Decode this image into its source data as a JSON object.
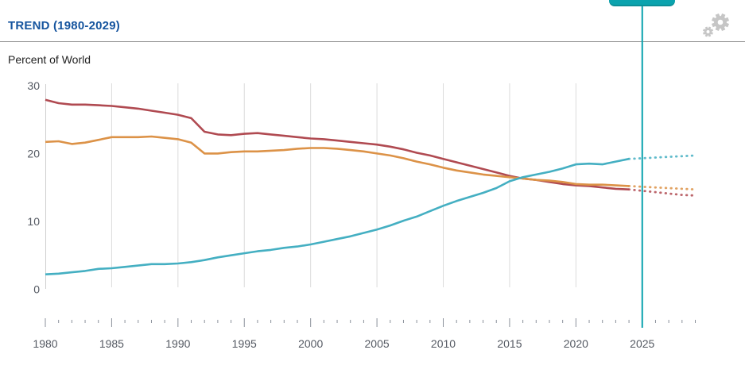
{
  "header": {
    "title": "TREND (1980-2029)",
    "subtitle": "Percent of World"
  },
  "colors": {
    "title_blue": "#15549E",
    "divider": "#909090",
    "subtitle_text": "#222222",
    "gridline": "#DBDBDB",
    "axis_line": "#CFCFCF",
    "tick": "#8B919B",
    "axis_text": "#545962",
    "marker_teal": "#0BA3AE",
    "gear_gray": "#C6C6C6"
  },
  "chart_data": {
    "type": "line",
    "title": "TREND (1980-2029)",
    "ylabel": "Percent of World",
    "xlim": [
      1980,
      2029
    ],
    "ylim": [
      0,
      30
    ],
    "yticks": [
      0,
      10,
      20,
      30
    ],
    "xticks_major": [
      1980,
      1985,
      1990,
      1995,
      2000,
      2005,
      2010,
      2015,
      2020,
      2025
    ],
    "grid_years": [
      1985,
      1990,
      1995,
      2000,
      2005,
      2010,
      2015,
      2020
    ],
    "marker_year": 2025,
    "projection_start": 2024,
    "legend_position": "none",
    "x": [
      1980,
      1981,
      1982,
      1983,
      1984,
      1985,
      1986,
      1987,
      1988,
      1989,
      1990,
      1991,
      1992,
      1993,
      1994,
      1995,
      1996,
      1997,
      1998,
      1999,
      2000,
      2001,
      2002,
      2003,
      2004,
      2005,
      2006,
      2007,
      2008,
      2009,
      2010,
      2011,
      2012,
      2013,
      2014,
      2015,
      2016,
      2017,
      2018,
      2019,
      2020,
      2021,
      2022,
      2023,
      2024,
      2025,
      2026,
      2027,
      2028,
      2029
    ],
    "series": [
      {
        "name": "red",
        "color": "#B04A51",
        "values": [
          27.9,
          27.4,
          27.2,
          27.2,
          27.1,
          27.0,
          26.8,
          26.6,
          26.3,
          26.0,
          25.7,
          25.2,
          23.2,
          22.8,
          22.7,
          22.9,
          23.0,
          22.8,
          22.6,
          22.4,
          22.2,
          22.1,
          21.9,
          21.7,
          21.5,
          21.3,
          21.0,
          20.6,
          20.1,
          19.7,
          19.2,
          18.7,
          18.2,
          17.7,
          17.2,
          16.7,
          16.3,
          16.1,
          15.8,
          15.5,
          15.3,
          15.2,
          15.0,
          14.8,
          14.7,
          14.5,
          14.3,
          14.1,
          13.9,
          13.8
        ]
      },
      {
        "name": "orange",
        "color": "#DC9247",
        "values": [
          21.7,
          21.8,
          21.4,
          21.6,
          22.0,
          22.4,
          22.4,
          22.4,
          22.5,
          22.3,
          22.1,
          21.6,
          20.0,
          20.0,
          20.2,
          20.3,
          20.3,
          20.4,
          20.5,
          20.7,
          20.8,
          20.8,
          20.7,
          20.5,
          20.3,
          20.0,
          19.7,
          19.3,
          18.8,
          18.4,
          17.9,
          17.5,
          17.2,
          16.9,
          16.7,
          16.5,
          16.3,
          16.1,
          16.0,
          15.8,
          15.5,
          15.4,
          15.4,
          15.3,
          15.2,
          15.1,
          15.0,
          14.9,
          14.8,
          14.7
        ]
      },
      {
        "name": "teal",
        "color": "#44AFC2",
        "values": [
          2.2,
          2.3,
          2.5,
          2.7,
          3.0,
          3.1,
          3.3,
          3.5,
          3.7,
          3.7,
          3.8,
          4.0,
          4.3,
          4.7,
          5.0,
          5.3,
          5.6,
          5.8,
          6.1,
          6.3,
          6.6,
          7.0,
          7.4,
          7.8,
          8.3,
          8.8,
          9.4,
          10.1,
          10.7,
          11.5,
          12.3,
          13.0,
          13.6,
          14.2,
          14.9,
          15.9,
          16.5,
          16.9,
          17.3,
          17.8,
          18.4,
          18.5,
          18.4,
          18.8,
          19.2,
          19.3,
          19.4,
          19.5,
          19.6,
          19.7
        ]
      }
    ]
  }
}
